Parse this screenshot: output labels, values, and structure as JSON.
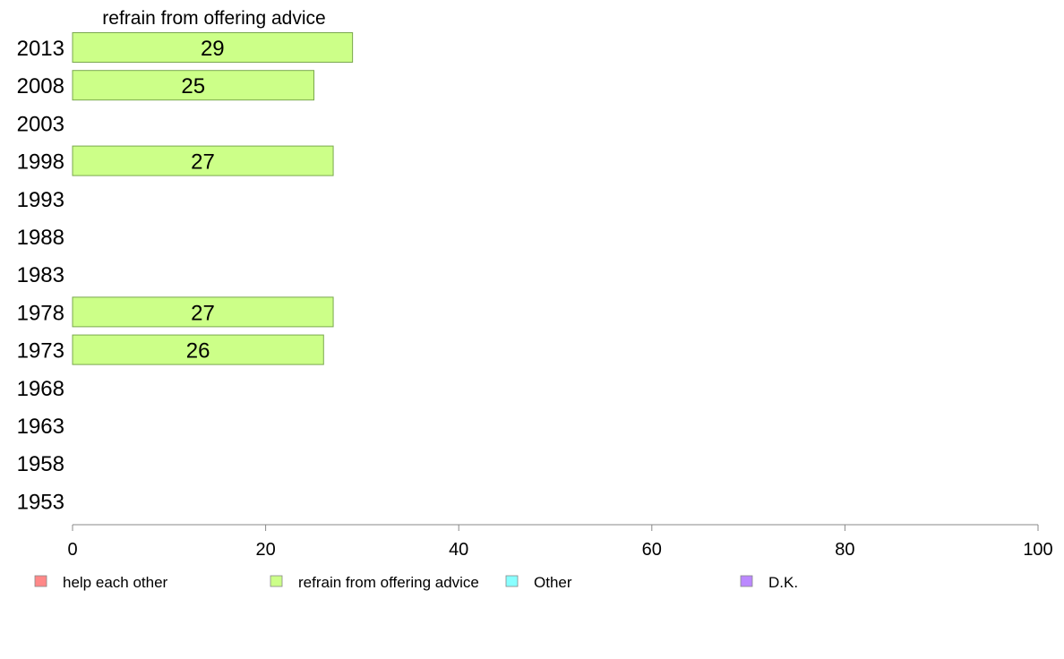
{
  "chart_data": {
    "type": "bar",
    "orientation": "horizontal",
    "title": "refrain from offering advice",
    "categories": [
      "2013",
      "2008",
      "2003",
      "1998",
      "1993",
      "1988",
      "1983",
      "1978",
      "1973",
      "1968",
      "1963",
      "1958",
      "1953"
    ],
    "series": [
      {
        "name": "refrain from offering advice",
        "color": "#ccff88",
        "values": [
          29,
          25,
          null,
          27,
          null,
          null,
          null,
          27,
          26,
          null,
          null,
          null,
          null
        ],
        "labels": [
          "29",
          "25",
          "",
          "27",
          "",
          "",
          "",
          "27",
          "26",
          "",
          "",
          "",
          ""
        ]
      }
    ],
    "xlim": [
      0,
      100
    ],
    "xticks": [
      0,
      20,
      40,
      60,
      80,
      100
    ],
    "xtick_labels": [
      "0",
      "20",
      "40",
      "60",
      "80",
      "100"
    ],
    "grid": false,
    "legend_position": "bottom",
    "legend": [
      {
        "label": "help each other",
        "color": "#ff8888"
      },
      {
        "label": "refrain from offering advice",
        "color": "#ccff88"
      },
      {
        "label": "Other",
        "color": "#88ffff"
      },
      {
        "label": "D.K.",
        "color": "#bb88ff"
      }
    ]
  }
}
